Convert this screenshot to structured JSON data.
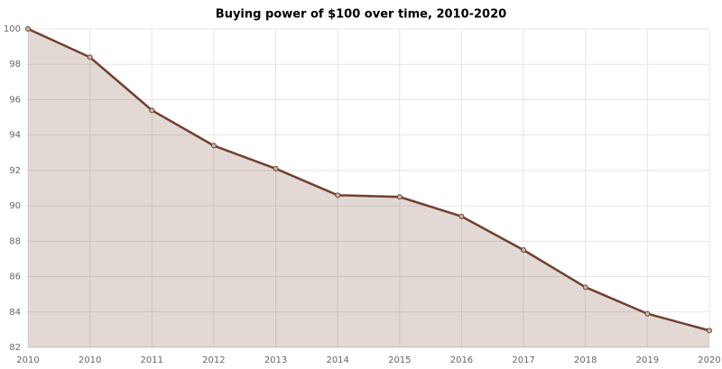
{
  "chart_data": {
    "type": "line",
    "title": "Buying power of $100 over time, 2010-2020",
    "categories": [
      "2010",
      "2010",
      "2011",
      "2012",
      "2013",
      "2014",
      "2015",
      "2016",
      "2017",
      "2018",
      "2019",
      "2020"
    ],
    "series": [
      {
        "name": "Buying power",
        "color": "#70402f",
        "fill_color": "rgba(112,64,47,0.2)",
        "values": [
          100,
          98.4,
          95.4,
          93.4,
          92.1,
          90.6,
          90.5,
          89.4,
          87.5,
          85.4,
          83.9,
          82.95
        ]
      }
    ],
    "ylim": [
      82,
      100
    ],
    "yticks": [
      82,
      84,
      86,
      88,
      90,
      92,
      94,
      96,
      98,
      100
    ],
    "grid": true,
    "area": true
  }
}
